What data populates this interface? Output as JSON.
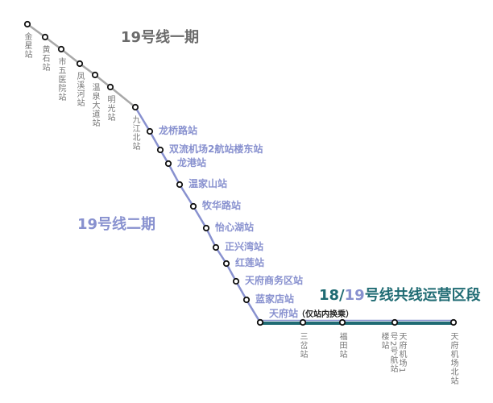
{
  "titles": {
    "phase1": "19号线一期",
    "phase2": "19号线二期",
    "shared_prefix": "18/",
    "shared_num": "19",
    "shared_suffix": "号线共线运营区段"
  },
  "note": "（仅站内换乘）",
  "colors": {
    "phase1": "#a8a8a8",
    "phase2": "#8891cf",
    "shared": "#1f6b73",
    "title1": "#6b6b6b"
  },
  "phase1_stations": [
    "金星站",
    "黄石站",
    "市五医院站",
    "凤溪河站",
    "温泉大道站",
    "明光站",
    "九江北站"
  ],
  "phase2_stations": [
    "龙桥路站",
    "双流机场2航站楼东站",
    "龙港站",
    "温家山站",
    "牧华路站",
    "怡心湖站",
    "正兴湾站",
    "红莲站",
    "天府商务区站",
    "蓝家店站",
    "天府站"
  ],
  "shared_stations": [
    "三岔站",
    "福田站",
    "天府机场1号2号航站楼站",
    "天府机场北站"
  ]
}
